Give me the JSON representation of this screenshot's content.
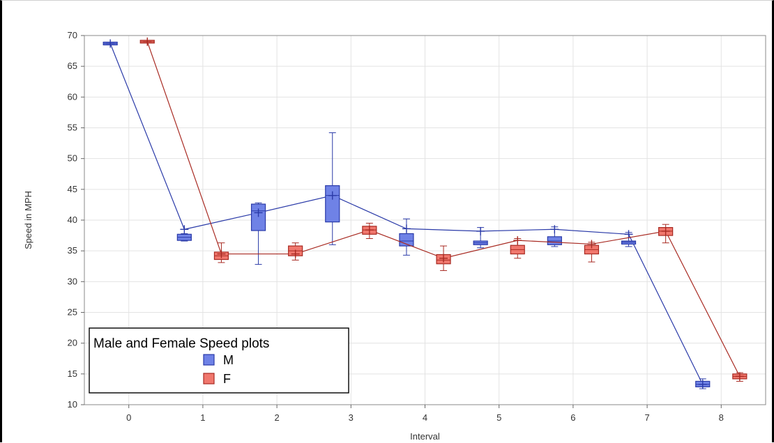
{
  "chart_data": {
    "type": "box",
    "xlabel": "Interval",
    "ylabel": "Speed in MPH",
    "xlim": [
      -0.6,
      8.6
    ],
    "ylim": [
      10,
      70
    ],
    "x_ticks": [
      0,
      1,
      2,
      3,
      4,
      5,
      6,
      7,
      8
    ],
    "y_ticks": [
      10,
      15,
      20,
      25,
      30,
      35,
      40,
      45,
      50,
      55,
      60,
      65,
      70
    ],
    "grid": true,
    "legend": {
      "title": "Male and Female Speed plots",
      "position": "bottom-left"
    },
    "series": [
      {
        "name": "M",
        "color": "#6f82e6",
        "edge_color": "#2a3aa8",
        "offset": -0.25,
        "boxes": [
          {
            "interval": 0,
            "min": 68.6,
            "q1": 68.6,
            "median": 68.7,
            "q3": 68.8,
            "max": 68.8,
            "mean": 68.7
          },
          {
            "interval": 1,
            "min": 36.6,
            "q1": 36.7,
            "median": 37.2,
            "q3": 37.7,
            "max": 37.8,
            "mean": 38.5
          },
          {
            "interval": 2,
            "min": 32.8,
            "q1": 38.3,
            "median": 41.5,
            "q3": 42.6,
            "max": 42.8,
            "mean": 41.2
          },
          {
            "interval": 3,
            "min": 36.0,
            "q1": 39.7,
            "median": 44.0,
            "q3": 45.6,
            "max": 54.2,
            "mean": 44.0
          },
          {
            "interval": 4,
            "min": 34.3,
            "q1": 35.8,
            "median": 36.6,
            "q3": 37.8,
            "max": 40.2,
            "mean": 38.6
          },
          {
            "interval": 5,
            "min": 35.5,
            "q1": 36.0,
            "median": 36.3,
            "q3": 36.6,
            "max": 38.8,
            "mean": 38.2
          },
          {
            "interval": 6,
            "min": 35.7,
            "q1": 36.0,
            "median": 36.6,
            "q3": 37.3,
            "max": 38.9,
            "mean": 38.5
          },
          {
            "interval": 7,
            "min": 35.7,
            "q1": 36.1,
            "median": 36.4,
            "q3": 36.6,
            "max": 38.0,
            "mean": 37.7
          },
          {
            "interval": 8,
            "min": 12.6,
            "q1": 12.9,
            "median": 13.3,
            "q3": 13.8,
            "max": 14.2,
            "mean": 13.3
          }
        ]
      },
      {
        "name": "F",
        "color": "#f0776d",
        "edge_color": "#a82a22",
        "offset": 0.25,
        "boxes": [
          {
            "interval": 0,
            "min": 68.9,
            "q1": 68.9,
            "median": 69.0,
            "q3": 69.1,
            "max": 69.1,
            "mean": 69.0
          },
          {
            "interval": 1,
            "min": 33.1,
            "q1": 33.6,
            "median": 34.2,
            "q3": 34.8,
            "max": 36.3,
            "mean": 34.5
          },
          {
            "interval": 2,
            "min": 33.5,
            "q1": 34.2,
            "median": 35.0,
            "q3": 35.8,
            "max": 36.3,
            "mean": 34.5
          },
          {
            "interval": 3,
            "min": 37.0,
            "q1": 37.7,
            "median": 38.4,
            "q3": 39.0,
            "max": 39.5,
            "mean": 38.4
          },
          {
            "interval": 4,
            "min": 31.8,
            "q1": 32.9,
            "median": 33.5,
            "q3": 34.4,
            "max": 35.8,
            "mean": 33.8
          },
          {
            "interval": 5,
            "min": 33.8,
            "q1": 34.5,
            "median": 35.2,
            "q3": 35.9,
            "max": 37.0,
            "mean": 36.7
          },
          {
            "interval": 6,
            "min": 33.2,
            "q1": 34.5,
            "median": 35.2,
            "q3": 35.9,
            "max": 36.4,
            "mean": 36.1
          },
          {
            "interval": 7,
            "min": 36.3,
            "q1": 37.5,
            "median": 38.2,
            "q3": 38.8,
            "max": 39.3,
            "mean": 38.2
          },
          {
            "interval": 8,
            "min": 13.8,
            "q1": 14.2,
            "median": 14.6,
            "q3": 15.0,
            "max": 15.2,
            "mean": 14.6
          }
        ]
      }
    ]
  }
}
